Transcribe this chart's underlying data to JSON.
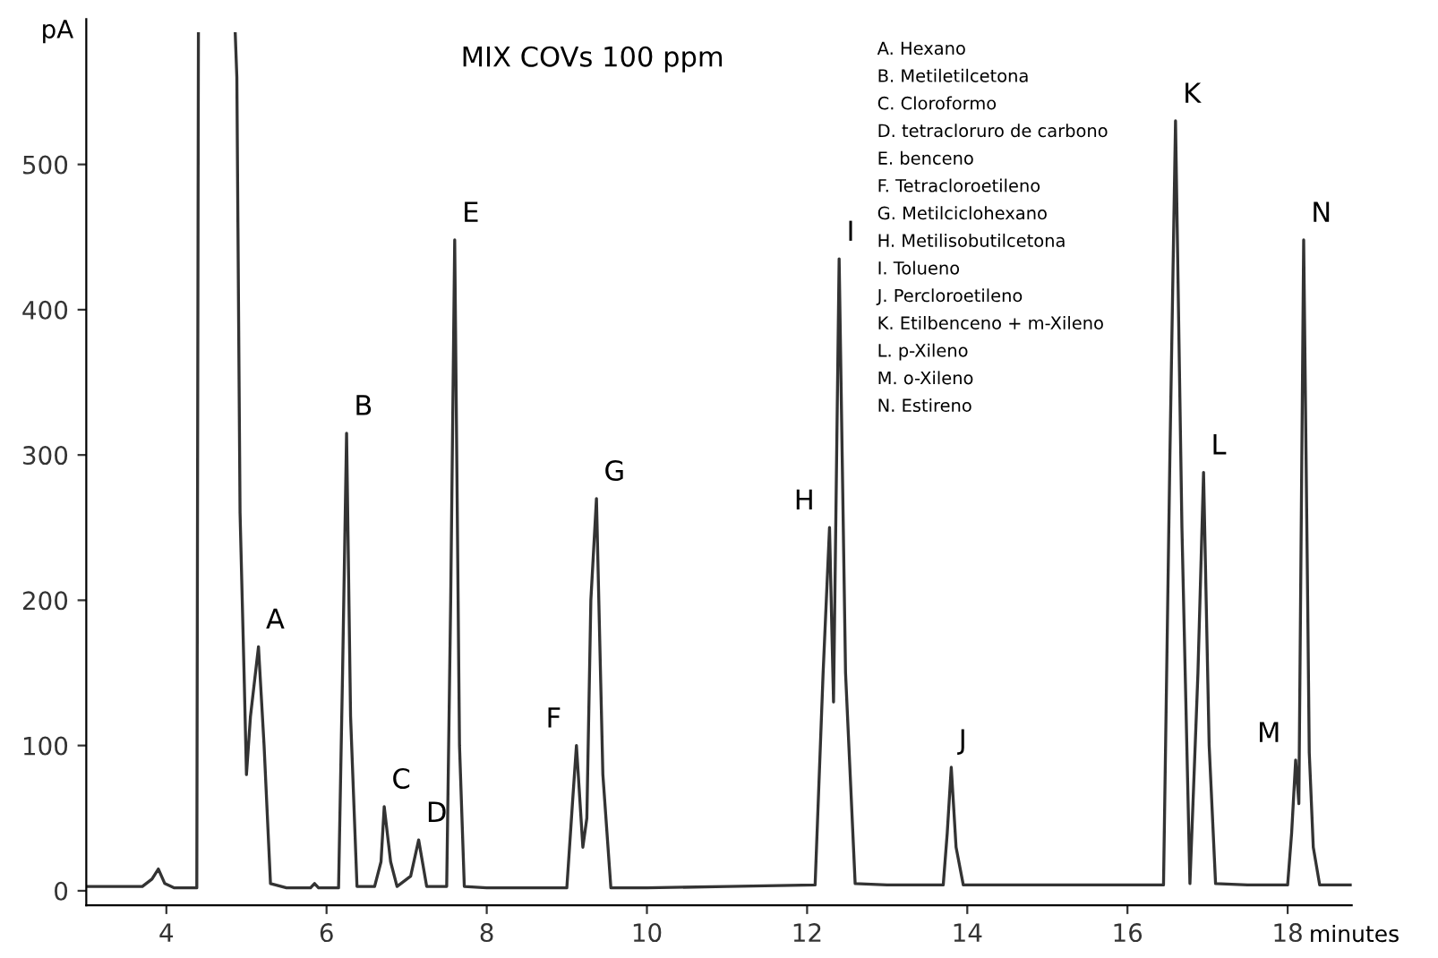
{
  "chart_data": {
    "type": "line",
    "title": "MIX COVs 100 ppm",
    "xlabel": "minutes",
    "ylabel": "pA",
    "xlim": [
      3.0,
      18.8
    ],
    "ylim": [
      -10,
      600
    ],
    "xticks": [
      4,
      6,
      8,
      10,
      12,
      14,
      16,
      18
    ],
    "yticks": [
      0,
      100,
      200,
      300,
      400,
      500
    ],
    "grid": false,
    "legend": false,
    "marker": "none",
    "line_style": "solid",
    "series": [
      {
        "color": "#333333",
        "x": [
          3.0,
          3.7,
          3.82,
          3.9,
          3.98,
          4.1,
          4.38,
          4.4,
          4.42,
          4.86,
          4.88,
          4.92,
          4.97,
          5.0,
          5.05,
          5.15,
          5.22,
          5.3,
          5.5,
          5.8,
          5.85,
          5.9,
          6.15,
          6.2,
          6.25,
          6.3,
          6.38,
          6.6,
          6.68,
          6.72,
          6.8,
          6.88,
          7.05,
          7.15,
          7.25,
          7.5,
          7.55,
          7.6,
          7.66,
          7.72,
          8.0,
          9.0,
          9.07,
          9.12,
          9.2,
          9.25,
          9.3,
          9.37,
          9.45,
          9.55,
          10.0,
          11.0,
          12.1,
          12.2,
          12.28,
          12.33,
          12.4,
          12.48,
          12.6,
          13.0,
          13.7,
          13.75,
          13.8,
          13.86,
          13.95,
          15.0,
          16.45,
          16.53,
          16.6,
          16.68,
          16.78,
          16.88,
          16.95,
          17.02,
          17.1,
          17.5,
          18.0,
          18.05,
          18.1,
          18.14,
          18.2,
          18.25,
          18.27,
          18.32,
          18.4,
          18.8
        ],
        "values": [
          3,
          3,
          8,
          15,
          5,
          2,
          2,
          590,
          null,
          590,
          560,
          260,
          150,
          80,
          120,
          168,
          100,
          5,
          2,
          2,
          5,
          2,
          2,
          150,
          315,
          120,
          3,
          3,
          20,
          58,
          20,
          3,
          10,
          35,
          3,
          3,
          200,
          448,
          100,
          3,
          2,
          2,
          60,
          100,
          30,
          50,
          200,
          270,
          80,
          2,
          2,
          3,
          4,
          150,
          250,
          130,
          435,
          150,
          5,
          4,
          4,
          40,
          85,
          30,
          4,
          4,
          4,
          300,
          530,
          250,
          5,
          150,
          288,
          100,
          5,
          4,
          4,
          40,
          90,
          60,
          448,
          200,
          95,
          30,
          4,
          4
        ]
      }
    ],
    "annotations": [
      {
        "text": "A",
        "x": 5.15,
        "y": 168
      },
      {
        "text": "B",
        "x": 6.25,
        "y": 315
      },
      {
        "text": "C",
        "x": 6.72,
        "y": 58
      },
      {
        "text": "D",
        "x": 7.15,
        "y": 35
      },
      {
        "text": "E",
        "x": 7.6,
        "y": 448
      },
      {
        "text": "F",
        "x": 9.12,
        "y": 100
      },
      {
        "text": "G",
        "x": 9.37,
        "y": 270
      },
      {
        "text": "H",
        "x": 12.28,
        "y": 250
      },
      {
        "text": "I",
        "x": 12.4,
        "y": 435
      },
      {
        "text": "J",
        "x": 13.8,
        "y": 85
      },
      {
        "text": "K",
        "x": 16.6,
        "y": 530
      },
      {
        "text": "L",
        "x": 16.95,
        "y": 288
      },
      {
        "text": "M",
        "x": 18.1,
        "y": 90
      },
      {
        "text": "N",
        "x": 18.2,
        "y": 448
      },
      "A. Hexano",
      "B. Metiletilcetona",
      "C. Cloroformo",
      "D. tetracloruro de carbono",
      "E. benceno",
      "F. Tetracloroetileno",
      "G. Metilciclohexano",
      "H. Metilisobutilcetona",
      "I. Tolueno",
      "J. Percloroetileno",
      "K. Etilbenceno + m-Xileno",
      "L. p-Xileno",
      "M. o-Xileno",
      "N. Estireno"
    ]
  }
}
